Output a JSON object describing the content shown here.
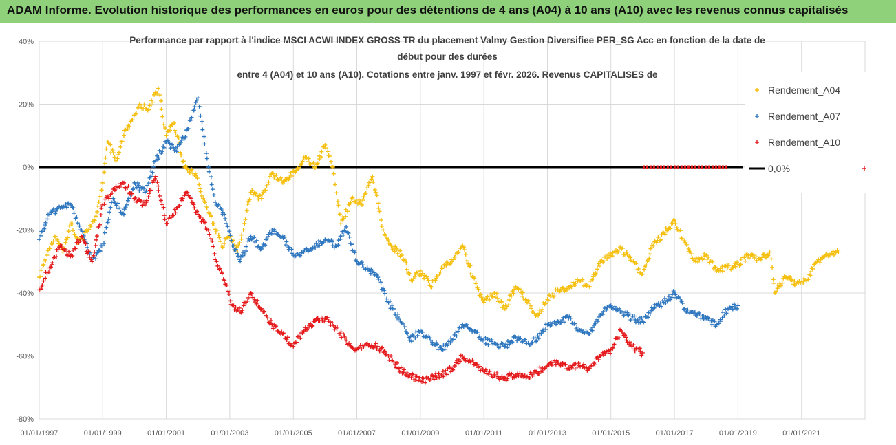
{
  "banner": {
    "title": "ADAM Informe. Evolution historique des performances en euros pour des détentions de 4 ans (A04) à 10 ans (A10) avec les revenus connus capitalisés",
    "background": "#8fd07a"
  },
  "chart_data": {
    "type": "scatter",
    "title_lines": [
      "Performance par rapport à l'indice MSCI ACWI INDEX GROSS TR  du placement Valmy Gestion Diversifiee PER_SG Acc en fonction de la date de",
      "début pour des durées",
      "entre 4 (A04) et 10 ans (A10).  Cotations entre janv. 1997 et févr. 2026. Revenus CAPITALISES de"
    ],
    "xlabel": "",
    "ylabel": "",
    "x_range": [
      "1997-01-01",
      "2023-01-01"
    ],
    "ylim": [
      -80,
      40
    ],
    "y_ticks": [
      "40%",
      "20%",
      "0%",
      "-20%",
      "-40%",
      "-60%",
      "-80%"
    ],
    "y_tick_values": [
      40,
      20,
      0,
      -20,
      -40,
      -60,
      -80
    ],
    "x_ticks": [
      "01/01/1997",
      "01/01/1999",
      "01/01/2001",
      "01/01/2003",
      "01/01/2005",
      "01/01/2007",
      "01/01/2009",
      "01/01/2011",
      "01/01/2013",
      "01/01/2015",
      "01/01/2017",
      "01/01/2019",
      "01/01/2021"
    ],
    "x_tick_dates": [
      "1997-01-01",
      "1999-01-01",
      "2001-01-01",
      "2003-01-01",
      "2005-01-01",
      "2007-01-01",
      "2009-01-01",
      "2011-01-01",
      "2013-01-01",
      "2015-01-01",
      "2017-01-01",
      "2019-01-01",
      "2021-01-01"
    ],
    "grid": true,
    "legend_position": "right",
    "series": [
      {
        "name": "Rendement_A04",
        "color": "#f5c011",
        "marker": "+",
        "points": [
          [
            "1997-01-01",
            -35
          ],
          [
            "1997-04-01",
            -28
          ],
          [
            "1997-07-01",
            -22
          ],
          [
            "1997-10-01",
            -27
          ],
          [
            "1998-01-01",
            -18
          ],
          [
            "1998-04-01",
            -24
          ],
          [
            "1998-07-01",
            -20
          ],
          [
            "1998-10-01",
            -17
          ],
          [
            "1999-01-01",
            -5
          ],
          [
            "1999-03-01",
            8
          ],
          [
            "1999-06-01",
            2
          ],
          [
            "1999-09-01",
            10
          ],
          [
            "1999-12-01",
            15
          ],
          [
            "2000-03-01",
            20
          ],
          [
            "2000-06-01",
            18
          ],
          [
            "2000-10-01",
            25
          ],
          [
            "2001-01-01",
            10
          ],
          [
            "2001-04-01",
            14
          ],
          [
            "2001-08-01",
            0
          ],
          [
            "2001-12-01",
            -2
          ],
          [
            "2002-03-01",
            -10
          ],
          [
            "2002-07-01",
            -18
          ],
          [
            "2002-10-01",
            -25
          ],
          [
            "2003-01-01",
            -22
          ],
          [
            "2003-04-01",
            -27
          ],
          [
            "2003-09-01",
            -8
          ],
          [
            "2004-01-01",
            -10
          ],
          [
            "2004-05-01",
            -2
          ],
          [
            "2004-09-01",
            -5
          ],
          [
            "2005-02-01",
            -1
          ],
          [
            "2005-06-01",
            3
          ],
          [
            "2005-09-01",
            0
          ],
          [
            "2006-01-01",
            7
          ],
          [
            "2006-04-01",
            0
          ],
          [
            "2006-07-01",
            -18
          ],
          [
            "2006-11-01",
            -10
          ],
          [
            "2007-03-01",
            -12
          ],
          [
            "2007-07-01",
            -3
          ],
          [
            "2007-11-01",
            -20
          ],
          [
            "2008-02-01",
            -25
          ],
          [
            "2008-06-01",
            -28
          ],
          [
            "2008-10-01",
            -36
          ],
          [
            "2009-01-01",
            -33
          ],
          [
            "2009-05-01",
            -38
          ],
          [
            "2009-09-01",
            -32
          ],
          [
            "2010-01-01",
            -30
          ],
          [
            "2010-05-01",
            -25
          ],
          [
            "2010-09-01",
            -35
          ],
          [
            "2011-01-01",
            -43
          ],
          [
            "2011-05-01",
            -40
          ],
          [
            "2011-09-01",
            -45
          ],
          [
            "2012-01-01",
            -38
          ],
          [
            "2012-05-01",
            -42
          ],
          [
            "2012-09-01",
            -47
          ],
          [
            "2013-01-01",
            -42
          ],
          [
            "2013-05-01",
            -39
          ],
          [
            "2013-09-01",
            -38
          ],
          [
            "2014-01-01",
            -36
          ],
          [
            "2014-05-01",
            -38
          ],
          [
            "2014-09-01",
            -30
          ],
          [
            "2015-01-01",
            -28
          ],
          [
            "2015-05-01",
            -26
          ],
          [
            "2015-09-01",
            -30
          ],
          [
            "2016-01-01",
            -34
          ],
          [
            "2016-05-01",
            -25
          ],
          [
            "2016-09-01",
            -21
          ],
          [
            "2017-01-01",
            -17
          ],
          [
            "2017-05-01",
            -24
          ],
          [
            "2017-09-01",
            -30
          ],
          [
            "2018-01-01",
            -28
          ],
          [
            "2018-05-01",
            -33
          ],
          [
            "2018-09-01",
            -32
          ],
          [
            "2019-01-01",
            -31
          ],
          [
            "2019-05-01",
            -28
          ],
          [
            "2019-09-01",
            -29
          ],
          [
            "2020-01-01",
            -27
          ],
          [
            "2020-03-01",
            -40
          ],
          [
            "2020-07-01",
            -35
          ],
          [
            "2020-11-01",
            -37
          ],
          [
            "2021-03-01",
            -36
          ],
          [
            "2021-07-01",
            -30
          ],
          [
            "2021-11-01",
            -28
          ],
          [
            "2022-03-01",
            -27
          ]
        ]
      },
      {
        "name": "Rendement_A07",
        "color": "#2f77bf",
        "marker": "+",
        "points": [
          [
            "1997-01-01",
            -23
          ],
          [
            "1997-05-01",
            -15
          ],
          [
            "1997-09-01",
            -13
          ],
          [
            "1998-01-01",
            -12
          ],
          [
            "1998-05-01",
            -20
          ],
          [
            "1998-09-01",
            -30
          ],
          [
            "1999-01-01",
            -25
          ],
          [
            "1999-05-01",
            -10
          ],
          [
            "1999-09-01",
            -15
          ],
          [
            "2000-01-01",
            -5
          ],
          [
            "2000-05-01",
            -8
          ],
          [
            "2000-09-01",
            2
          ],
          [
            "2001-01-01",
            8
          ],
          [
            "2001-05-01",
            5
          ],
          [
            "2001-09-01",
            12
          ],
          [
            "2002-01-01",
            22
          ],
          [
            "2002-05-01",
            0
          ],
          [
            "2002-08-01",
            -12
          ],
          [
            "2002-11-01",
            -15
          ],
          [
            "2003-02-01",
            -25
          ],
          [
            "2003-05-01",
            -30
          ],
          [
            "2003-09-01",
            -22
          ],
          [
            "2004-01-01",
            -26
          ],
          [
            "2004-05-01",
            -20
          ],
          [
            "2004-09-01",
            -22
          ],
          [
            "2005-01-01",
            -28
          ],
          [
            "2005-05-01",
            -27
          ],
          [
            "2005-09-01",
            -25
          ],
          [
            "2006-01-01",
            -23
          ],
          [
            "2006-05-01",
            -25
          ],
          [
            "2006-09-01",
            -19
          ],
          [
            "2007-01-01",
            -30
          ],
          [
            "2007-05-01",
            -32
          ],
          [
            "2007-09-01",
            -35
          ],
          [
            "2008-01-01",
            -43
          ],
          [
            "2008-05-01",
            -48
          ],
          [
            "2008-09-01",
            -55
          ],
          [
            "2009-01-01",
            -52
          ],
          [
            "2009-05-01",
            -55
          ],
          [
            "2009-09-01",
            -58
          ],
          [
            "2010-01-01",
            -55
          ],
          [
            "2010-05-01",
            -50
          ],
          [
            "2010-09-01",
            -52
          ],
          [
            "2011-01-01",
            -55
          ],
          [
            "2011-05-01",
            -56
          ],
          [
            "2011-09-01",
            -57
          ],
          [
            "2012-01-01",
            -54
          ],
          [
            "2012-05-01",
            -56
          ],
          [
            "2012-09-01",
            -55
          ],
          [
            "2013-01-01",
            -50
          ],
          [
            "2013-05-01",
            -49
          ],
          [
            "2013-09-01",
            -48
          ],
          [
            "2014-01-01",
            -52
          ],
          [
            "2014-05-01",
            -53
          ],
          [
            "2014-09-01",
            -47
          ],
          [
            "2015-01-01",
            -44
          ],
          [
            "2015-05-01",
            -46
          ],
          [
            "2015-09-01",
            -48
          ],
          [
            "2016-01-01",
            -49
          ],
          [
            "2016-05-01",
            -45
          ],
          [
            "2016-09-01",
            -43
          ],
          [
            "2017-01-01",
            -40
          ],
          [
            "2017-05-01",
            -45
          ],
          [
            "2017-09-01",
            -47
          ],
          [
            "2018-01-01",
            -48
          ],
          [
            "2018-05-01",
            -50
          ],
          [
            "2018-09-01",
            -45
          ],
          [
            "2019-01-01",
            -44
          ]
        ]
      },
      {
        "name": "Rendement_A10",
        "color": "#e41a1c",
        "marker": "+",
        "points": [
          [
            "1997-01-01",
            -39
          ],
          [
            "1997-05-01",
            -32
          ],
          [
            "1997-09-01",
            -25
          ],
          [
            "1998-01-01",
            -28
          ],
          [
            "1998-05-01",
            -22
          ],
          [
            "1998-09-01",
            -30
          ],
          [
            "1999-01-01",
            -12
          ],
          [
            "1999-05-01",
            -7
          ],
          [
            "1999-09-01",
            -5
          ],
          [
            "2000-01-01",
            -10
          ],
          [
            "2000-05-01",
            -12
          ],
          [
            "2000-09-01",
            -3
          ],
          [
            "2001-01-01",
            -18
          ],
          [
            "2001-05-01",
            -13
          ],
          [
            "2001-09-01",
            -8
          ],
          [
            "2002-01-01",
            -15
          ],
          [
            "2002-05-01",
            -20
          ],
          [
            "2002-08-01",
            -30
          ],
          [
            "2002-11-01",
            -36
          ],
          [
            "2003-02-01",
            -44
          ],
          [
            "2003-05-01",
            -46
          ],
          [
            "2003-09-01",
            -40
          ],
          [
            "2004-01-01",
            -45
          ],
          [
            "2004-05-01",
            -50
          ],
          [
            "2004-09-01",
            -53
          ],
          [
            "2005-01-01",
            -57
          ],
          [
            "2005-05-01",
            -52
          ],
          [
            "2005-09-01",
            -49
          ],
          [
            "2006-01-01",
            -48
          ],
          [
            "2006-05-01",
            -51
          ],
          [
            "2006-09-01",
            -55
          ],
          [
            "2007-01-01",
            -58
          ],
          [
            "2007-05-01",
            -56
          ],
          [
            "2007-09-01",
            -57
          ],
          [
            "2008-01-01",
            -60
          ],
          [
            "2008-05-01",
            -64
          ],
          [
            "2008-09-01",
            -66
          ],
          [
            "2009-01-01",
            -68
          ],
          [
            "2009-05-01",
            -67
          ],
          [
            "2009-09-01",
            -66
          ],
          [
            "2010-01-01",
            -64
          ],
          [
            "2010-05-01",
            -60
          ],
          [
            "2010-09-01",
            -62
          ],
          [
            "2011-01-01",
            -65
          ],
          [
            "2011-05-01",
            -66
          ],
          [
            "2011-09-01",
            -67
          ],
          [
            "2012-01-01",
            -66
          ],
          [
            "2012-05-01",
            -67
          ],
          [
            "2012-09-01",
            -65
          ],
          [
            "2013-01-01",
            -63
          ],
          [
            "2013-05-01",
            -62
          ],
          [
            "2013-09-01",
            -64
          ],
          [
            "2014-01-01",
            -63
          ],
          [
            "2014-05-01",
            -64
          ],
          [
            "2014-09-01",
            -60
          ],
          [
            "2015-01-01",
            -58
          ],
          [
            "2015-05-01",
            -52
          ],
          [
            "2015-09-01",
            -57
          ],
          [
            "2016-01-01",
            -59
          ]
        ]
      }
    ],
    "reference_line": {
      "name": "0,0%",
      "value": 0,
      "color": "#000000",
      "width": "thick"
    },
    "dashed_overlay": {
      "from": "2016-01-01",
      "to": "2018-09-01",
      "value": 0,
      "color": "#e41a1c"
    }
  }
}
